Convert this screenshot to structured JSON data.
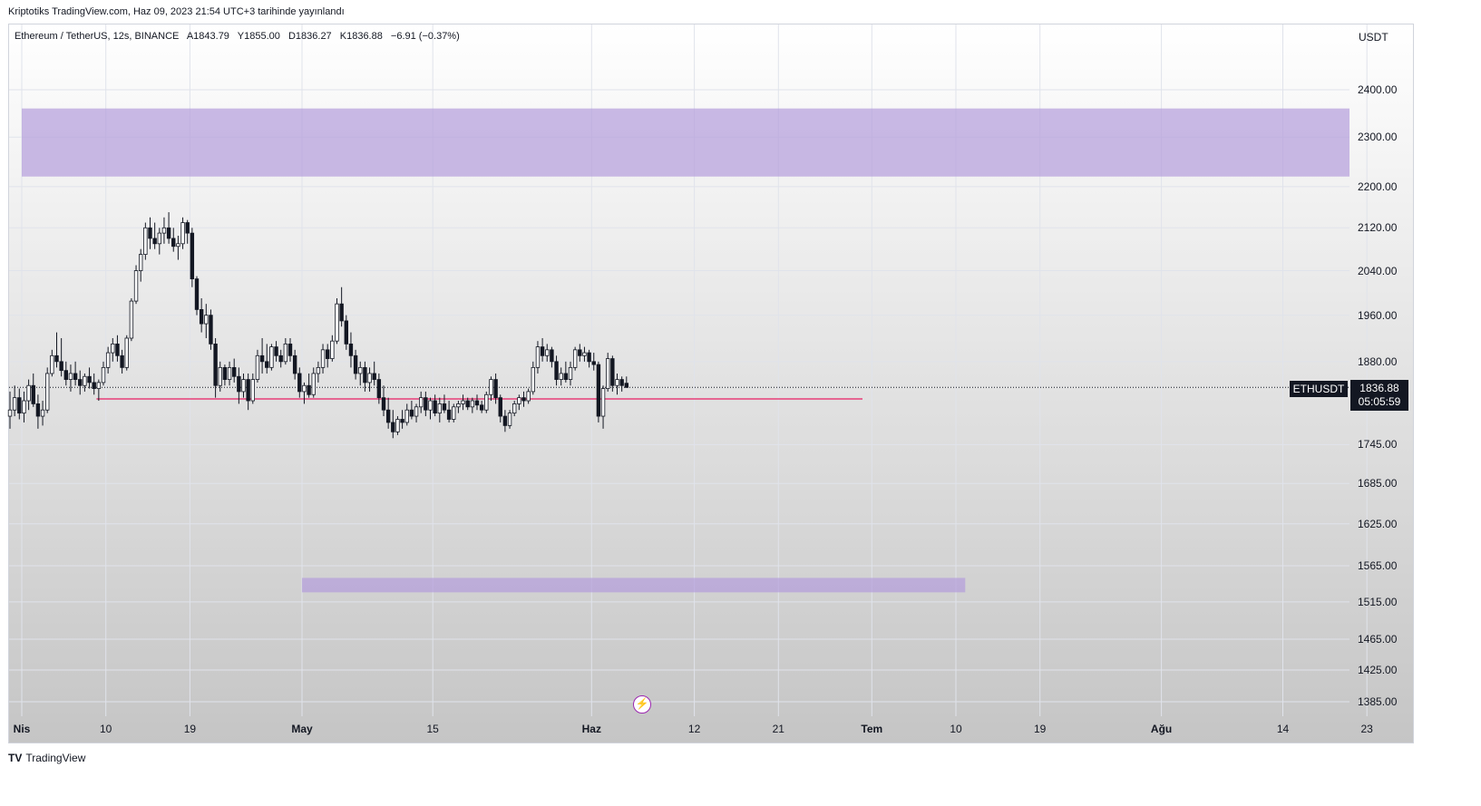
{
  "header": {
    "published": "Kriptotiks TradingView.com, Haz 09, 2023 21:54 UTC+3 tarihinde yayınlandı"
  },
  "legend": {
    "symbol": "Ethereum / TetherUS, 12s, BINANCE",
    "open": "A1843.79",
    "high": "Y1855.00",
    "low": "D1836.27",
    "close": "K1836.88",
    "change": "−6.91 (−0.37%)"
  },
  "axis": {
    "unit": "USDT",
    "y_ticks": [
      "2400.00",
      "2300.00",
      "2200.00",
      "2120.00",
      "2040.00",
      "1960.00",
      "1880.00",
      "1745.00",
      "1685.00",
      "1625.00",
      "1565.00",
      "1515.00",
      "1465.00",
      "1425.00",
      "1385.00"
    ],
    "x_ticks": [
      {
        "label": "Nis",
        "bold": true
      },
      {
        "label": "10",
        "bold": false
      },
      {
        "label": "19",
        "bold": false
      },
      {
        "label": "May",
        "bold": true
      },
      {
        "label": "15",
        "bold": false
      },
      {
        "label": "Haz",
        "bold": true
      },
      {
        "label": "12",
        "bold": false
      },
      {
        "label": "21",
        "bold": false
      },
      {
        "label": "Tem",
        "bold": true
      },
      {
        "label": "10",
        "bold": false
      },
      {
        "label": "19",
        "bold": false
      },
      {
        "label": "Ağu",
        "bold": true
      },
      {
        "label": "14",
        "bold": false
      },
      {
        "label": "23",
        "bold": false
      }
    ]
  },
  "badges": {
    "symbol": "ETHUSDT",
    "price": "1836.88",
    "countdown": "05:05:59"
  },
  "brand": {
    "name": "TradingView",
    "logo": "TV"
  },
  "colors": {
    "zone": "#b39ddb",
    "support_line": "#e91e63",
    "candle": "#131722",
    "badge": "#131722",
    "bolt": "#9c27b0"
  },
  "chart_data": {
    "type": "candlestick",
    "y_scale": "log",
    "zones": [
      {
        "low": 2220,
        "high": 2360,
        "from": "2023-04-01",
        "to": "2023-08-27"
      },
      {
        "low": 1528,
        "high": 1548,
        "from": "2023-05-01",
        "to": "2023-07-11"
      }
    ],
    "support_line": {
      "value": 1818,
      "from": "2023-04-09",
      "to": "2023-06-30"
    },
    "last_price": 1836.88,
    "candles_12h": [
      [
        1790,
        1830,
        1770,
        1800
      ],
      [
        1800,
        1840,
        1790,
        1820
      ],
      [
        1820,
        1835,
        1785,
        1795
      ],
      [
        1795,
        1830,
        1780,
        1815
      ],
      [
        1815,
        1850,
        1800,
        1840
      ],
      [
        1840,
        1860,
        1805,
        1810
      ],
      [
        1810,
        1825,
        1770,
        1790
      ],
      [
        1790,
        1815,
        1775,
        1800
      ],
      [
        1800,
        1870,
        1795,
        1860
      ],
      [
        1860,
        1900,
        1855,
        1890
      ],
      [
        1890,
        1930,
        1870,
        1880
      ],
      [
        1880,
        1920,
        1855,
        1865
      ],
      [
        1865,
        1880,
        1840,
        1850
      ],
      [
        1850,
        1875,
        1830,
        1860
      ],
      [
        1860,
        1880,
        1840,
        1850
      ],
      [
        1850,
        1865,
        1825,
        1840
      ],
      [
        1840,
        1860,
        1830,
        1855
      ],
      [
        1855,
        1870,
        1835,
        1845
      ],
      [
        1845,
        1860,
        1825,
        1835
      ],
      [
        1835,
        1850,
        1815,
        1845
      ],
      [
        1845,
        1880,
        1840,
        1870
      ],
      [
        1870,
        1905,
        1860,
        1895
      ],
      [
        1895,
        1920,
        1880,
        1910
      ],
      [
        1910,
        1925,
        1880,
        1890
      ],
      [
        1890,
        1900,
        1860,
        1870
      ],
      [
        1870,
        1925,
        1865,
        1920
      ],
      [
        1920,
        1990,
        1915,
        1985
      ],
      [
        1985,
        2050,
        1980,
        2040
      ],
      [
        2040,
        2080,
        2020,
        2070
      ],
      [
        2070,
        2130,
        2060,
        2120
      ],
      [
        2120,
        2140,
        2080,
        2100
      ],
      [
        2100,
        2130,
        2080,
        2090
      ],
      [
        2090,
        2120,
        2070,
        2110
      ],
      [
        2110,
        2140,
        2090,
        2120
      ],
      [
        2120,
        2150,
        2090,
        2100
      ],
      [
        2100,
        2120,
        2075,
        2085
      ],
      [
        2085,
        2105,
        2060,
        2090
      ],
      [
        2090,
        2140,
        2080,
        2130
      ],
      [
        2130,
        2135,
        2090,
        2110
      ],
      [
        2110,
        2120,
        2010,
        2025
      ],
      [
        2025,
        2030,
        1960,
        1970
      ],
      [
        1970,
        1990,
        1930,
        1945
      ],
      [
        1945,
        1980,
        1920,
        1960
      ],
      [
        1960,
        1970,
        1900,
        1910
      ],
      [
        1910,
        1920,
        1820,
        1840
      ],
      [
        1840,
        1880,
        1830,
        1870
      ],
      [
        1870,
        1875,
        1840,
        1850
      ],
      [
        1850,
        1880,
        1840,
        1870
      ],
      [
        1870,
        1885,
        1845,
        1855
      ],
      [
        1855,
        1870,
        1810,
        1830
      ],
      [
        1830,
        1860,
        1820,
        1850
      ],
      [
        1850,
        1860,
        1800,
        1815
      ],
      [
        1815,
        1860,
        1810,
        1850
      ],
      [
        1850,
        1900,
        1845,
        1890
      ],
      [
        1890,
        1920,
        1860,
        1880
      ],
      [
        1880,
        1910,
        1860,
        1870
      ],
      [
        1870,
        1910,
        1865,
        1905
      ],
      [
        1905,
        1915,
        1880,
        1890
      ],
      [
        1890,
        1900,
        1870,
        1880
      ],
      [
        1880,
        1920,
        1875,
        1910
      ],
      [
        1910,
        1920,
        1880,
        1890
      ],
      [
        1890,
        1900,
        1850,
        1860
      ],
      [
        1860,
        1870,
        1820,
        1830
      ],
      [
        1830,
        1845,
        1810,
        1840
      ],
      [
        1840,
        1860,
        1820,
        1825
      ],
      [
        1825,
        1870,
        1820,
        1860
      ],
      [
        1860,
        1880,
        1845,
        1870
      ],
      [
        1870,
        1910,
        1860,
        1900
      ],
      [
        1900,
        1910,
        1870,
        1885
      ],
      [
        1885,
        1925,
        1880,
        1915
      ],
      [
        1915,
        1990,
        1910,
        1980
      ],
      [
        1980,
        2010,
        1940,
        1950
      ],
      [
        1950,
        1960,
        1900,
        1910
      ],
      [
        1910,
        1930,
        1870,
        1890
      ],
      [
        1890,
        1900,
        1850,
        1860
      ],
      [
        1860,
        1880,
        1840,
        1870
      ],
      [
        1870,
        1880,
        1830,
        1845
      ],
      [
        1845,
        1870,
        1830,
        1860
      ],
      [
        1860,
        1880,
        1840,
        1850
      ],
      [
        1850,
        1860,
        1810,
        1820
      ],
      [
        1820,
        1840,
        1790,
        1800
      ],
      [
        1800,
        1820,
        1770,
        1780
      ],
      [
        1780,
        1800,
        1755,
        1765
      ],
      [
        1765,
        1790,
        1760,
        1785
      ],
      [
        1785,
        1800,
        1770,
        1780
      ],
      [
        1780,
        1810,
        1775,
        1800
      ],
      [
        1800,
        1815,
        1785,
        1790
      ],
      [
        1790,
        1810,
        1780,
        1805
      ],
      [
        1805,
        1830,
        1795,
        1820
      ],
      [
        1820,
        1830,
        1790,
        1800
      ],
      [
        1800,
        1820,
        1785,
        1815
      ],
      [
        1815,
        1825,
        1790,
        1795
      ],
      [
        1795,
        1820,
        1780,
        1810
      ],
      [
        1810,
        1825,
        1795,
        1800
      ],
      [
        1800,
        1815,
        1780,
        1785
      ],
      [
        1785,
        1810,
        1780,
        1805
      ],
      [
        1805,
        1815,
        1795,
        1810
      ],
      [
        1810,
        1825,
        1800,
        1815
      ],
      [
        1815,
        1820,
        1800,
        1805
      ],
      [
        1805,
        1820,
        1795,
        1815
      ],
      [
        1815,
        1825,
        1800,
        1808
      ],
      [
        1808,
        1815,
        1795,
        1800
      ],
      [
        1800,
        1830,
        1795,
        1825
      ],
      [
        1825,
        1855,
        1815,
        1850
      ],
      [
        1850,
        1860,
        1810,
        1820
      ],
      [
        1820,
        1825,
        1780,
        1790
      ],
      [
        1790,
        1800,
        1765,
        1775
      ],
      [
        1775,
        1800,
        1770,
        1795
      ],
      [
        1795,
        1815,
        1790,
        1810
      ],
      [
        1810,
        1825,
        1800,
        1820
      ],
      [
        1820,
        1830,
        1805,
        1815
      ],
      [
        1815,
        1835,
        1810,
        1830
      ],
      [
        1830,
        1880,
        1825,
        1870
      ],
      [
        1870,
        1915,
        1860,
        1905
      ],
      [
        1905,
        1920,
        1880,
        1890
      ],
      [
        1890,
        1910,
        1880,
        1900
      ],
      [
        1900,
        1905,
        1870,
        1880
      ],
      [
        1880,
        1890,
        1840,
        1850
      ],
      [
        1850,
        1870,
        1840,
        1860
      ],
      [
        1860,
        1880,
        1845,
        1850
      ],
      [
        1850,
        1880,
        1840,
        1870
      ],
      [
        1870,
        1905,
        1865,
        1900
      ],
      [
        1900,
        1910,
        1880,
        1890
      ],
      [
        1890,
        1905,
        1880,
        1895
      ],
      [
        1895,
        1900,
        1870,
        1880
      ],
      [
        1880,
        1895,
        1865,
        1875
      ],
      [
        1875,
        1880,
        1780,
        1790
      ],
      [
        1790,
        1840,
        1770,
        1835
      ],
      [
        1835,
        1895,
        1830,
        1885
      ],
      [
        1885,
        1890,
        1830,
        1840
      ],
      [
        1840,
        1860,
        1825,
        1850
      ],
      [
        1850,
        1855,
        1830,
        1840
      ],
      [
        1843.79,
        1855,
        1836.27,
        1836.88
      ]
    ]
  }
}
